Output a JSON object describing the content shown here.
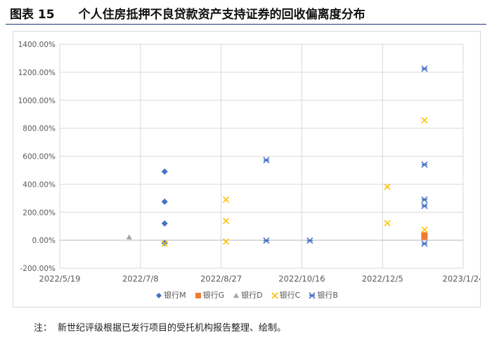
{
  "figure": {
    "title": "图表 15　　个人住房抵押不良贷款资产支持证券的回收偏离度分布",
    "note_label": "注：",
    "note_text": "新世纪评级根据已发行项目的受托机构报告整理、绘制。"
  },
  "colors": {
    "m": "#4472C4",
    "g": "#ED7D31",
    "d": "#A5A5A5",
    "c": "#FFC000",
    "b": "#4472C4"
  },
  "chart_data": {
    "type": "scatter",
    "title": "",
    "xlabel": "",
    "ylabel": "",
    "xlim": [
      "2022/5/19",
      "2023/1/24"
    ],
    "ylim": [
      -200,
      1400
    ],
    "x_ticks": [
      "2022/5/19",
      "2022/7/8",
      "2022/8/27",
      "2022/10/16",
      "2022/12/5",
      "2023/1/24"
    ],
    "y_ticks": [
      -200,
      0,
      200,
      400,
      600,
      800,
      1000,
      1200,
      1400
    ],
    "y_tick_labels": [
      "-200.00%",
      "0.00%",
      "200.00%",
      "400.00%",
      "600.00%",
      "800.00%",
      "1000.00%",
      "1200.00%",
      "1400.00%"
    ],
    "x_grid": true,
    "y_grid": true,
    "legend_position": "bottom",
    "series": [
      {
        "name": "银行M",
        "marker": "diamond",
        "color": "#4472C4",
        "points": [
          [
            "2022/7/23",
            490
          ],
          [
            "2022/7/23",
            275
          ],
          [
            "2022/7/23",
            120
          ],
          [
            "2022/7/23",
            -20
          ]
        ]
      },
      {
        "name": "银行G",
        "marker": "square",
        "color": "#ED7D31",
        "points": [
          [
            "2022/12/31",
            35
          ],
          [
            "2022/12/31",
            25
          ]
        ]
      },
      {
        "name": "银行D",
        "marker": "triangle",
        "color": "#A5A5A5",
        "points": [
          [
            "2022/7/1",
            22
          ]
        ]
      },
      {
        "name": "银行C",
        "marker": "x",
        "color": "#FFC000",
        "points": [
          [
            "2022/7/23",
            -25
          ],
          [
            "2022/8/30",
            290
          ],
          [
            "2022/8/30",
            138
          ],
          [
            "2022/8/30",
            -10
          ],
          [
            "2022/12/8",
            382
          ],
          [
            "2022/12/8",
            122
          ],
          [
            "2022/12/31",
            857
          ],
          [
            "2022/12/31",
            75
          ]
        ]
      },
      {
        "name": "银行B",
        "marker": "star",
        "color": "#4472C4",
        "points": [
          [
            "2022/9/24",
            572
          ],
          [
            "2022/9/24",
            -3
          ],
          [
            "2022/10/21",
            -3
          ],
          [
            "2022/12/31",
            1225
          ],
          [
            "2022/12/31",
            540
          ],
          [
            "2022/12/31",
            290
          ],
          [
            "2022/12/31",
            245
          ],
          [
            "2022/12/31",
            -25
          ]
        ]
      }
    ]
  }
}
